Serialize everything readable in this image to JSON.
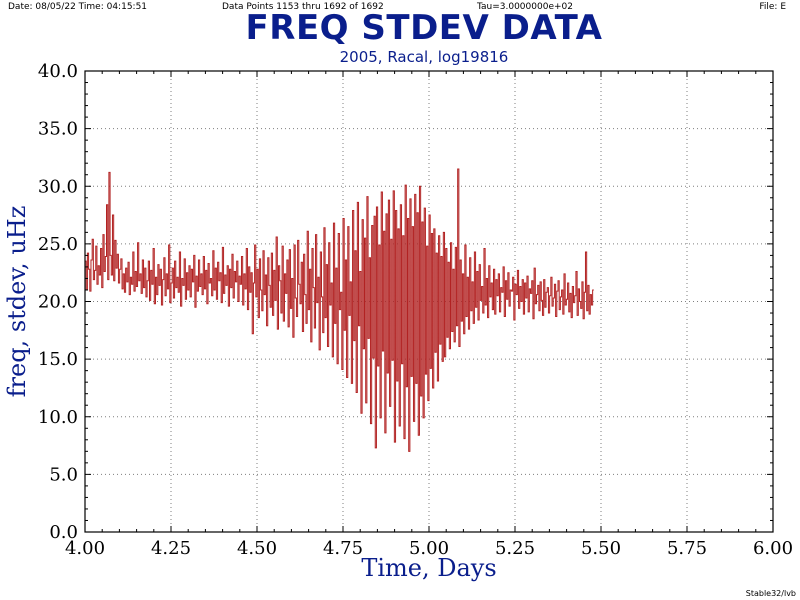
{
  "header": {
    "date_time": "Date: 08/05/22  Time: 04:15:51",
    "data_points": "Data Points 1153 thru 1692 of 1692",
    "tau": "Tau=3.0000000e+02",
    "file": "File: E"
  },
  "footer": "Stable32/lvb",
  "colors": {
    "title": "#0a1e8c",
    "series": "#b22222",
    "grid": "#7f7f7f"
  },
  "chart_data": {
    "type": "line",
    "title": "FREQ STDEV DATA",
    "subtitle": "2005, Racal, log19816",
    "xlabel": "Time,  Days",
    "ylabel": "freq,  stdev,  uHz",
    "xlim": [
      4.0,
      6.0
    ],
    "ylim": [
      0.0,
      40.0
    ],
    "x_ticks": [
      "4.00",
      "4.25",
      "4.50",
      "4.75",
      "5.00",
      "5.25",
      "5.50",
      "5.75",
      "6.00"
    ],
    "y_ticks": [
      "0.0",
      "5.0",
      "10.0",
      "15.0",
      "20.0",
      "25.0",
      "30.0",
      "35.0",
      "40.0"
    ],
    "grid": true,
    "legend": "none",
    "series": [
      {
        "color": "#b22222",
        "x_start": 4.0,
        "x_step": 0.00347222,
        "values": [
          23.5,
          21.0,
          24.2,
          22.8,
          20.9,
          23.6,
          25.4,
          21.9,
          22.7,
          24.8,
          21.5,
          23.1,
          22.3,
          24.6,
          21.2,
          25.8,
          22.6,
          23.9,
          28.4,
          21.9,
          31.2,
          24.0,
          22.3,
          27.5,
          21.8,
          25.3,
          22.9,
          24.1,
          21.6,
          22.8,
          23.7,
          21.1,
          22.4,
          20.8,
          22.9,
          21.7,
          23.4,
          20.6,
          22.1,
          21.5,
          24.3,
          20.9,
          22.6,
          21.3,
          25.1,
          21.8,
          22.4,
          20.7,
          23.6,
          21.2,
          22.9,
          20.4,
          21.8,
          23.5,
          20.1,
          22.7,
          21.5,
          24.6,
          19.8,
          22.1,
          20.6,
          23.2,
          21.4,
          22.8,
          19.7,
          21.9,
          23.8,
          20.5,
          22.4,
          21.1,
          24.9,
          19.9,
          21.6,
          22.9,
          20.3,
          23.5,
          21.2,
          22.1,
          20.8,
          24.3,
          19.6,
          22.0,
          21.4,
          23.7,
          20.2,
          22.5,
          21.0,
          23.1,
          20.4,
          22.8,
          21.7,
          24.0,
          19.5,
          22.2,
          20.9,
          23.6,
          21.3,
          22.4,
          20.6,
          23.9,
          21.1,
          22.7,
          19.8,
          23.3,
          21.6,
          22.0,
          20.5,
          24.4,
          21.0,
          22.9,
          20.2,
          23.4,
          21.8,
          22.5,
          19.9,
          24.7,
          20.7,
          22.3,
          21.4,
          23.1,
          19.6,
          22.8,
          21.2,
          24.1,
          20.3,
          22.6,
          21.7,
          23.5,
          20.0,
          22.2,
          21.5,
          23.9,
          19.7,
          22.4,
          21.1,
          24.6,
          19.3,
          23.0,
          20.8,
          22.5,
          17.2,
          21.6,
          24.9,
          20.4,
          22.8,
          18.6,
          23.7,
          21.0,
          19.2,
          24.4,
          20.6,
          22.3,
          17.9,
          23.8,
          21.4,
          19.5,
          24.2,
          18.8,
          22.7,
          20.1,
          25.6,
          17.6,
          23.1,
          21.8,
          19.0,
          24.8,
          18.3,
          22.4,
          20.7,
          23.6,
          17.8,
          24.5,
          19.4,
          22.0,
          16.9,
          24.9,
          20.3,
          18.7,
          25.3,
          21.5,
          19.8,
          23.4,
          17.4,
          24.1,
          20.6,
          18.1,
          26.1,
          19.3,
          22.8,
          16.5,
          24.6,
          21.2,
          17.7,
          25.8,
          19.9,
          22.1,
          15.8,
          24.3,
          20.4,
          17.3,
          26.4,
          18.6,
          23.2,
          16.1,
          25.1,
          19.7,
          21.6,
          15.2,
          26.8,
          18.1,
          22.9,
          14.6,
          25.9,
          19.3,
          20.8,
          14.1,
          27.2,
          17.5,
          23.6,
          13.4,
          26.5,
          18.8,
          21.7,
          12.9,
          27.9,
          16.6,
          24.4,
          12.1,
          28.6,
          17.9,
          22.6,
          10.3,
          27.1,
          15.9,
          25.5,
          11.2,
          29.1,
          16.8,
          23.8,
          9.4,
          26.6,
          15.1,
          27.4,
          7.3,
          28.2,
          14.4,
          24.9,
          9.9,
          29.5,
          15.7,
          26.1,
          8.6,
          27.6,
          13.8,
          28.8,
          10.9,
          25.4,
          14.9,
          29.6,
          7.8,
          27.9,
          13.1,
          26.3,
          9.2,
          28.4,
          14.6,
          25.7,
          8.1,
          30.1,
          12.6,
          27.2,
          7.0,
          28.9,
          13.5,
          26.5,
          9.6,
          29.3,
          12.9,
          27.7,
          8.4,
          30.0,
          11.8,
          26.9,
          9.9,
          28.1,
          13.7,
          24.8,
          11.4,
          27.5,
          14.2,
          25.9,
          12.5,
          26.3,
          15.6,
          24.2,
          13.1,
          25.7,
          16.3,
          23.9,
          14.8,
          26.0,
          15.2,
          24.6,
          16.9,
          23.4,
          15.9,
          25.1,
          17.4,
          22.8,
          16.5,
          24.7,
          17.9,
          31.5,
          16.1,
          23.6,
          18.3,
          22.4,
          17.2,
          24.9,
          18.7,
          22.1,
          17.6,
          23.8,
          19.2,
          21.7,
          18.1,
          24.3,
          19.5,
          22.6,
          18.4,
          23.2,
          20.1,
          21.3,
          19.0,
          24.6,
          19.7,
          22.0,
          18.6,
          23.1,
          20.4,
          21.6,
          19.3,
          22.8,
          18.9,
          21.9,
          20.5,
          22.4,
          19.1,
          21.2,
          20.8,
          23.0,
          18.7,
          21.8,
          20.2,
          22.5,
          19.6,
          21.0,
          20.9,
          22.1,
          18.4,
          21.5,
          20.6,
          22.7,
          19.4,
          21.3,
          20.0,
          21.9,
          18.9,
          21.6,
          20.3,
          22.2,
          19.1,
          21.1,
          20.7,
          21.8,
          18.5,
          22.9,
          19.8,
          20.6,
          21.4,
          19.2,
          21.7,
          20.1,
          18.8,
          21.9,
          19.5,
          20.8,
          21.2,
          19.0,
          20.5,
          22.1,
          19.6,
          20.3,
          21.5,
          18.7,
          20.9,
          21.8,
          19.3,
          20.4,
          21.0,
          18.9,
          22.4,
          19.7,
          20.2,
          21.6,
          19.1,
          20.7,
          18.6,
          21.3,
          19.9,
          20.5,
          22.6,
          18.8,
          21.1,
          20.0,
          19.4,
          21.7,
          18.5,
          20.8,
          24.3,
          19.2,
          21.4,
          18.9,
          20.6,
          19.7,
          21.0
        ]
      }
    ]
  }
}
